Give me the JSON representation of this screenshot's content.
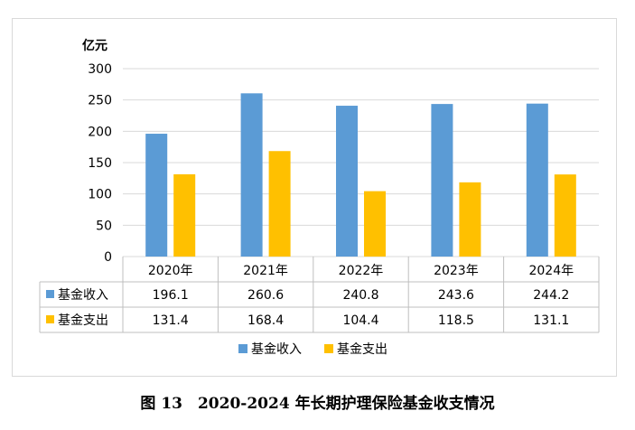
{
  "caption": "图 13　2020-2024 年长期护理保险基金收支情况",
  "chart_data": {
    "type": "bar",
    "title": "",
    "ylabel": "亿元",
    "ylim": [
      0,
      300
    ],
    "yticks": [
      0,
      50,
      100,
      150,
      200,
      250,
      300
    ],
    "categories": [
      "2020年",
      "2021年",
      "2022年",
      "2023年",
      "2024年"
    ],
    "series": [
      {
        "name": "基金收入",
        "color": "#5b9bd5",
        "values": [
          196.1,
          260.6,
          240.8,
          243.6,
          244.2
        ]
      },
      {
        "name": "基金支出",
        "color": "#ffc000",
        "values": [
          131.4,
          168.4,
          104.4,
          118.5,
          131.1
        ]
      }
    ],
    "grid": true,
    "legend": "bottom",
    "data_table": true
  }
}
